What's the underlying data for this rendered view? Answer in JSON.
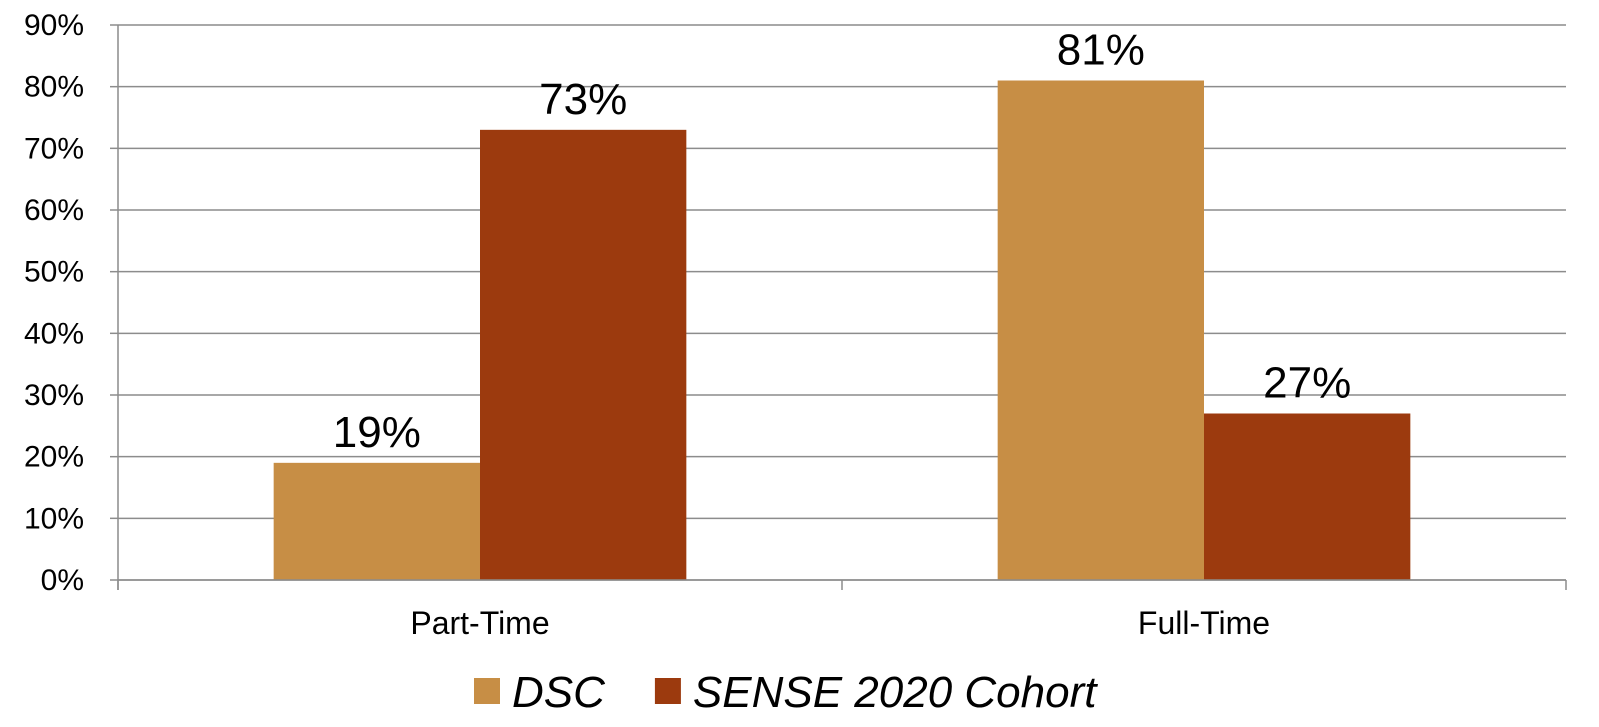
{
  "chart_data": {
    "type": "bar",
    "categories": [
      "Part-Time",
      "Full-Time"
    ],
    "series": [
      {
        "name": "DSC",
        "values": [
          19,
          81
        ],
        "color": "#C78E45",
        "labels": [
          "19%",
          "81%"
        ]
      },
      {
        "name": "SENSE 2020 Cohort",
        "values": [
          73,
          27
        ],
        "color": "#9C3A0E",
        "labels": [
          "73%",
          "27%"
        ]
      }
    ],
    "ylim": [
      0,
      90
    ],
    "yticks": [
      "0%",
      "10%",
      "20%",
      "30%",
      "40%",
      "50%",
      "60%",
      "70%",
      "80%",
      "90%"
    ],
    "grid": true,
    "legend_position": "bottom"
  }
}
